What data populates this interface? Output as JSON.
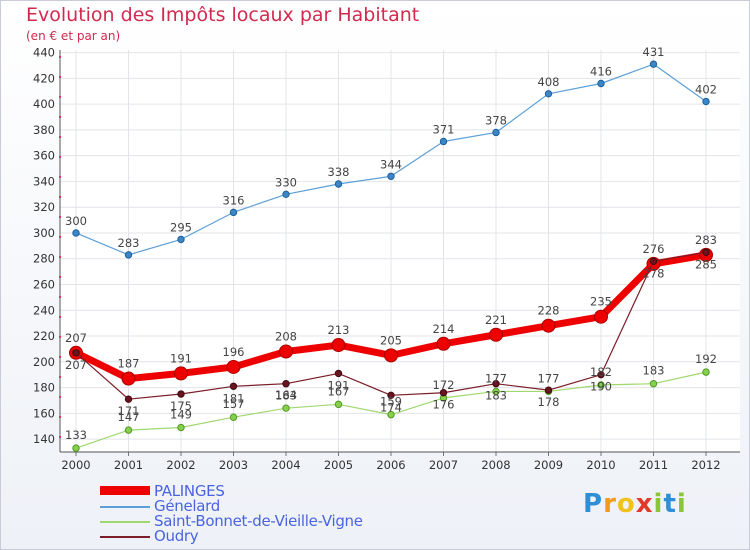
{
  "title": "Evolution des Impôts locaux par Habitant",
  "subtitle": "(en € et par an)",
  "brand": {
    "letters": [
      "P",
      "r",
      "o",
      "x",
      "i",
      "t",
      "i"
    ],
    "colors": [
      "#2f8fd6",
      "#f29a1c",
      "#f2c21c",
      "#e23a2a",
      "#8cc43c",
      "#2f8fd6",
      "#8cc43c"
    ]
  },
  "chart_data": {
    "type": "line",
    "x": [
      "2000",
      "2001",
      "2002",
      "2003",
      "2004",
      "2005",
      "2006",
      "2007",
      "2008",
      "2009",
      "2010",
      "2011",
      "2012"
    ],
    "ylim": [
      130,
      442
    ],
    "yticks": [
      140,
      160,
      180,
      200,
      220,
      240,
      260,
      280,
      300,
      320,
      340,
      360,
      380,
      400,
      420,
      440
    ],
    "grid": true,
    "legend_position": "bottom-left",
    "series": [
      {
        "name": "PALINGES",
        "color": "#ee0000",
        "values": [
          207,
          187,
          191,
          196,
          208,
          213,
          205,
          214,
          221,
          228,
          235,
          276,
          283
        ],
        "labels": [
          "207",
          "187",
          "191",
          "196",
          "208",
          "213",
          "205",
          "214",
          "221",
          "228",
          "235",
          "276",
          "283"
        ]
      },
      {
        "name": "Génelard",
        "color": "#5d9fd6",
        "values": [
          300,
          283,
          295,
          316,
          330,
          338,
          344,
          371,
          378,
          408,
          416,
          431,
          402
        ],
        "labels": [
          "300",
          "283",
          "295",
          "316",
          "330",
          "338",
          "344",
          "371",
          "378",
          "408",
          "416",
          "431",
          "402"
        ]
      },
      {
        "name": "Saint-Bonnet-de-Vieille-Vigne",
        "color": "#9fd86e",
        "values": [
          133,
          147,
          149,
          157,
          164,
          167,
          159,
          172,
          177,
          177,
          182,
          183,
          192
        ],
        "labels": [
          "133",
          "147",
          "149",
          "157",
          "164",
          "167",
          "159",
          "172",
          "177",
          "177",
          "182",
          "183",
          "192"
        ]
      },
      {
        "name": "Oudry",
        "color": "#7a1d28",
        "values": [
          207,
          171,
          175,
          181,
          183,
          191,
          174,
          176,
          183,
          178,
          190,
          278,
          285
        ],
        "labels": [
          "207",
          "171",
          "175",
          "181",
          "183",
          "191",
          "174",
          "176",
          "183",
          "178",
          "190",
          "278",
          "285"
        ]
      }
    ]
  }
}
